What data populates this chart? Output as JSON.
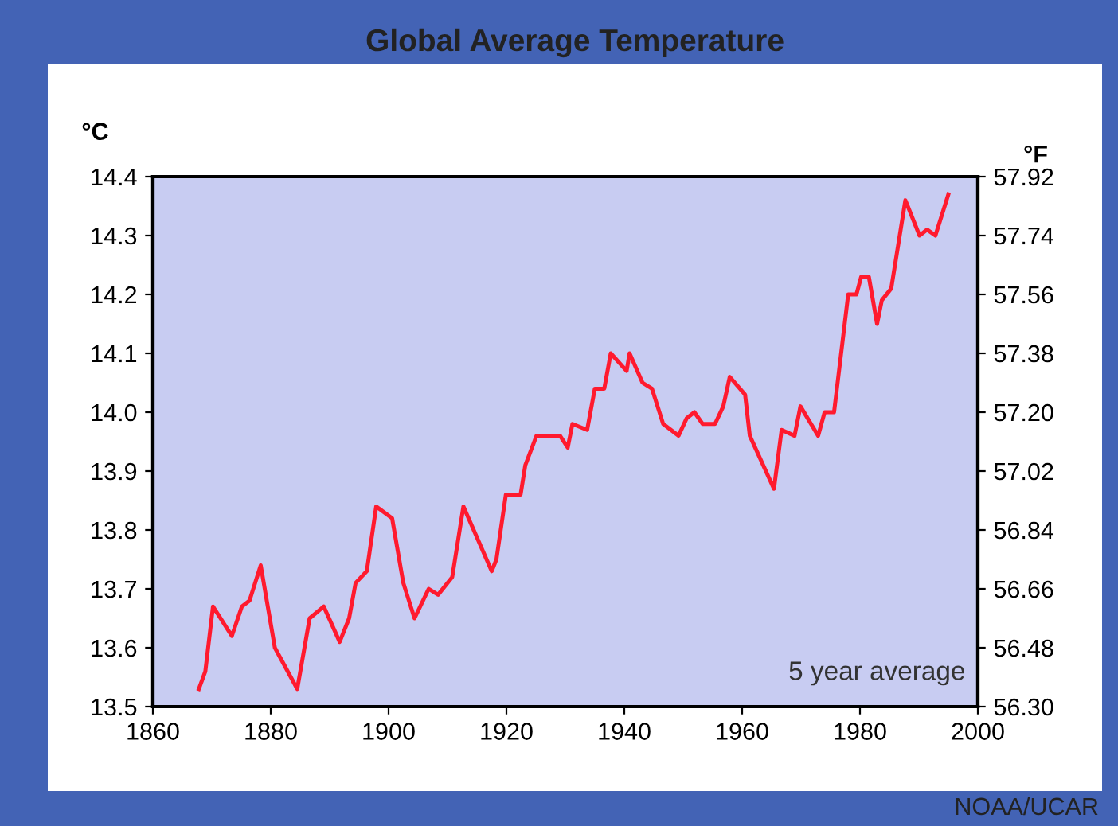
{
  "chart_data": {
    "type": "line",
    "title": "Global Average Temperature",
    "ylabel": "°C",
    "y2label": "°F",
    "x": [
      1867.8,
      1868.9,
      1870.2,
      1873.4,
      1875.1,
      1876.4,
      1878.3,
      1880.7,
      1884.5,
      1886.6,
      1889,
      1891.7,
      1893.3,
      1894.4,
      1896.3,
      1897.9,
      1900.6,
      1902.5,
      1904.4,
      1906.8,
      1908.4,
      1910.8,
      1912.7,
      1917.5,
      1918.3,
      1919.9,
      1922.4,
      1923.2,
      1925.1,
      1926.9,
      1929.1,
      1930.4,
      1931.2,
      1933.7,
      1935,
      1936.6,
      1937.7,
      1940.4,
      1940.9,
      1943.1,
      1944.7,
      1946.6,
      1949.2,
      1950.6,
      1951.9,
      1953.3,
      1955.4,
      1956.8,
      1957.9,
      1960.5,
      1961.3,
      1965.4,
      1966.7,
      1968.9,
      1969.9,
      1972.9,
      1974,
      1975.6,
      1978,
      1979.4,
      1980.2,
      1981.5,
      1982.9,
      1983.7,
      1985.3,
      1987.7,
      1990.1,
      1991.4,
      1992.8,
      1995
    ],
    "series": [
      {
        "color": "#ff1a2e",
        "values": [
          13.53,
          13.56,
          13.67,
          13.62,
          13.67,
          13.68,
          13.74,
          13.6,
          13.53,
          13.65,
          13.67,
          13.61,
          13.65,
          13.71,
          13.73,
          13.84,
          13.82,
          13.71,
          13.65,
          13.7,
          13.69,
          13.72,
          13.84,
          13.73,
          13.75,
          13.86,
          13.86,
          13.91,
          13.96,
          13.96,
          13.96,
          13.94,
          13.98,
          13.97,
          14.04,
          14.04,
          14.1,
          14.07,
          14.1,
          14.05,
          14.04,
          13.98,
          13.96,
          13.99,
          14.0,
          13.98,
          13.98,
          14.01,
          14.06,
          14.03,
          13.96,
          13.87,
          13.97,
          13.96,
          14.01,
          13.96,
          14.0,
          14.0,
          14.2,
          14.2,
          14.23,
          14.23,
          14.15,
          14.19,
          14.21,
          14.36,
          14.3,
          14.31,
          14.3,
          14.37
        ]
      }
    ],
    "xlim": [
      1860,
      2000
    ],
    "xticks": [
      1860,
      1880,
      1900,
      1920,
      1940,
      1960,
      1980,
      2000
    ],
    "ylim": [
      13.5,
      14.4
    ],
    "yticks": [
      13.5,
      13.6,
      13.7,
      13.8,
      13.9,
      {
        "value": 14.0,
        "label": "14.0"
      },
      14.1,
      14.2,
      14.3,
      14.4
    ],
    "y2lim": [
      56.3,
      57.92
    ],
    "y2ticks": [
      {
        "value": 56.3,
        "label": "56.30"
      },
      56.48,
      56.66,
      56.84,
      57.02,
      {
        "value": 57.2,
        "label": "57.20"
      },
      57.38,
      57.56,
      57.74,
      57.92
    ],
    "annotations": [
      "5 year average",
      "NOAA/UCAR"
    ]
  }
}
